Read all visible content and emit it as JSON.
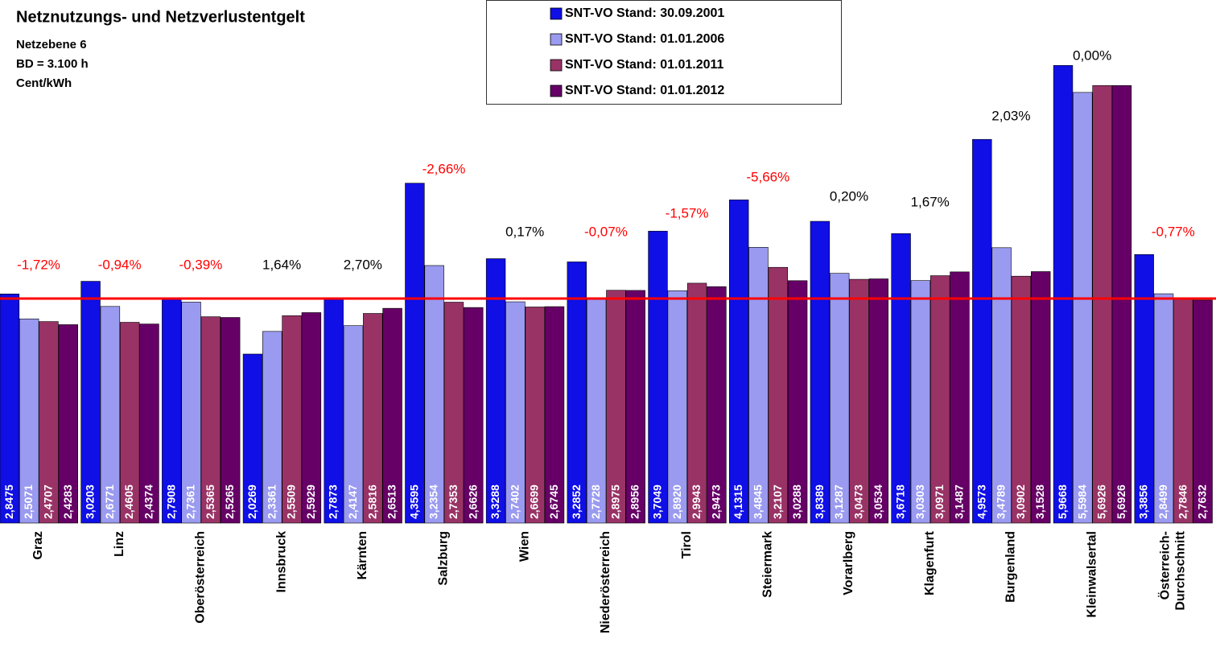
{
  "chart_data": {
    "type": "bar",
    "title": "Netznutzungs- und Netzverlustentgelt",
    "subtitle": [
      "Netzebene 6",
      "BD = 3.100 h",
      "Cent/kWh"
    ],
    "categories": [
      "Graz",
      "Linz",
      "Oberösterreich",
      "Innsbruck",
      "Kärnten",
      "Salzburg",
      "Wien",
      "Niederösterreich",
      "Tirol",
      "Steiermark",
      "Vorarlberg",
      "Klagenfurt",
      "Burgenland",
      "Kleinwalsertal",
      "Österreich-\nDurchschnitt"
    ],
    "series": [
      {
        "name": "SNT-VO Stand: 30.09.2001",
        "color": "#0f0fe6",
        "values": [
          2.8475,
          3.0203,
          2.7908,
          2.0269,
          2.7873,
          4.3595,
          3.3288,
          3.2852,
          3.7049,
          4.1315,
          3.8389,
          3.6718,
          4.9573,
          5.9668,
          3.3856
        ],
        "value_labels": [
          "2,8475",
          "3,0203",
          "2,7908",
          "2,0269",
          "2,7873",
          "4,3595",
          "3,3288",
          "3,2852",
          "3,7049",
          "4,1315",
          "3,8389",
          "3,6718",
          "4,9573",
          "5,9668",
          "3,3856"
        ]
      },
      {
        "name": "SNT-VO Stand: 01.01.2006",
        "color": "#9a9af0",
        "values": [
          2.5071,
          2.6771,
          2.7361,
          2.3361,
          2.4147,
          3.2354,
          2.7402,
          2.7728,
          2.892,
          3.4845,
          3.1287,
          3.0303,
          3.4789,
          5.5984,
          2.8499
        ],
        "value_labels": [
          "2,5071",
          "2,6771",
          "2,7361",
          "2,3361",
          "2,4147",
          "3,2354",
          "2,7402",
          "2,7728",
          "2,8920",
          "3,4845",
          "3,1287",
          "3,0303",
          "3,4789",
          "5,5984",
          "2,8499"
        ]
      },
      {
        "name": "SNT-VO Stand: 01.01.2011",
        "color": "#993366",
        "values": [
          2.4707,
          2.4605,
          2.5365,
          2.5509,
          2.5816,
          2.7353,
          2.6699,
          2.8975,
          2.9943,
          3.2107,
          3.0473,
          3.0971,
          3.0902,
          5.6926,
          2.7846
        ],
        "value_labels": [
          "2,4707",
          "2,4605",
          "2,5365",
          "2,5509",
          "2,5816",
          "2,7353",
          "2,6699",
          "2,8975",
          "2,9943",
          "3,2107",
          "3,0473",
          "3,0971",
          "3,0902",
          "5,6926",
          "2,7846"
        ]
      },
      {
        "name": "SNT-VO Stand: 01.01.2012",
        "color": "#660066",
        "values": [
          2.4283,
          2.4374,
          2.5265,
          2.5929,
          2.6513,
          2.6626,
          2.6745,
          2.8956,
          2.9473,
          3.0288,
          3.0534,
          3.1487,
          3.1528,
          5.6926,
          2.7632
        ],
        "value_labels": [
          "2,4283",
          "2,4374",
          "2,5265",
          "2,5929",
          "2,6513",
          "2,6626",
          "2,6745",
          "2,8956",
          "2,9473",
          "3,0288",
          "3,0534",
          "3,1487",
          "3,1528",
          "5,6926",
          "2,7632"
        ]
      }
    ],
    "annotations": [
      {
        "text": "-1,72%",
        "color": "#ff0000"
      },
      {
        "text": "-0,94%",
        "color": "#ff0000"
      },
      {
        "text": "-0,39%",
        "color": "#ff0000"
      },
      {
        "text": "1,64%",
        "color": "#000000"
      },
      {
        "text": "2,70%",
        "color": "#000000"
      },
      {
        "text": "-2,66%",
        "color": "#ff0000"
      },
      {
        "text": "0,17%",
        "color": "#000000"
      },
      {
        "text": "-0,07%",
        "color": "#ff0000"
      },
      {
        "text": "-1,57%",
        "color": "#ff0000"
      },
      {
        "text": "-5,66%",
        "color": "#ff0000"
      },
      {
        "text": "0,20%",
        "color": "#000000"
      },
      {
        "text": "1,67%",
        "color": "#000000"
      },
      {
        "text": "2,03%",
        "color": "#000000"
      },
      {
        "text": "0,00%",
        "color": "#000000"
      },
      {
        "text": "-0,77%",
        "color": "#ff0000"
      }
    ],
    "reference_line": {
      "value": 2.7846,
      "color": "#ff0000"
    },
    "ylim": [
      -0.28,
      6.86
    ]
  }
}
